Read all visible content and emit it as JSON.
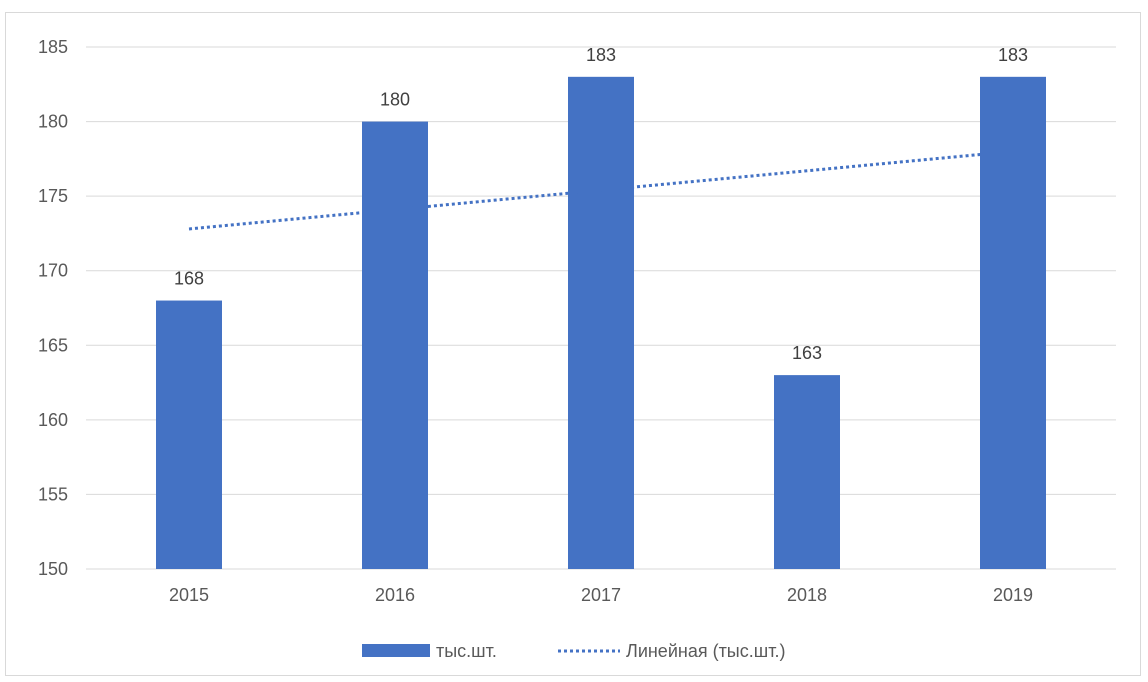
{
  "chart_data": {
    "type": "bar",
    "title": "",
    "xlabel": "",
    "ylabel": "",
    "categories": [
      "2015",
      "2016",
      "2017",
      "2018",
      "2019"
    ],
    "series": [
      {
        "name": "тыс.шт.",
        "values": [
          168,
          180,
          183,
          163,
          183
        ],
        "color": "#4472c4"
      }
    ],
    "trendline": {
      "type": "linear",
      "name": "Линейная (тыс.шт.)",
      "color": "#4472c4",
      "style": "dotted"
    },
    "ylim": [
      150,
      185
    ],
    "yticks": [
      150,
      155,
      160,
      165,
      170,
      175,
      180,
      185
    ],
    "grid": true,
    "legend_position": "bottom",
    "data_labels": true
  }
}
